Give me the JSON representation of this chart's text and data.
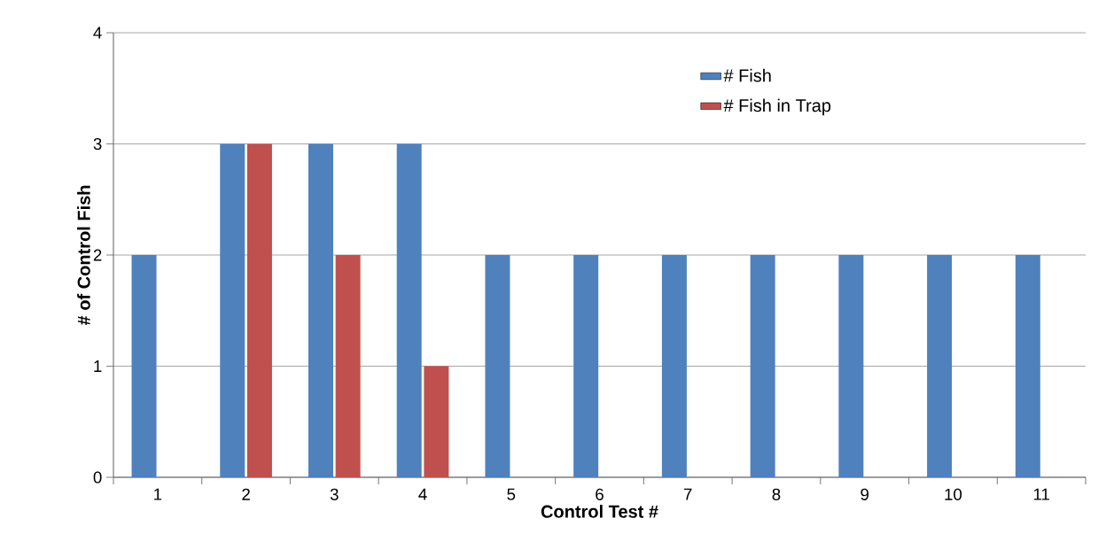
{
  "chart_data": {
    "type": "bar",
    "xlabel": "Control Test #",
    "ylabel": "# of Control Fish",
    "categories": [
      "1",
      "2",
      "3",
      "4",
      "5",
      "6",
      "7",
      "8",
      "9",
      "10",
      "11"
    ],
    "series": [
      {
        "name": "# Fish",
        "color": "#4f81bd",
        "values": [
          2,
          3,
          3,
          3,
          2,
          2,
          2,
          2,
          2,
          2,
          2
        ]
      },
      {
        "name": "# Fish in Trap",
        "color": "#c0504d",
        "values": [
          0,
          3,
          2,
          1,
          0,
          0,
          0,
          0,
          0,
          0,
          0
        ]
      }
    ],
    "ylim": [
      0,
      4
    ],
    "yticks": [
      0,
      1,
      2,
      3,
      4
    ],
    "grid": "y",
    "legend": "top right"
  }
}
